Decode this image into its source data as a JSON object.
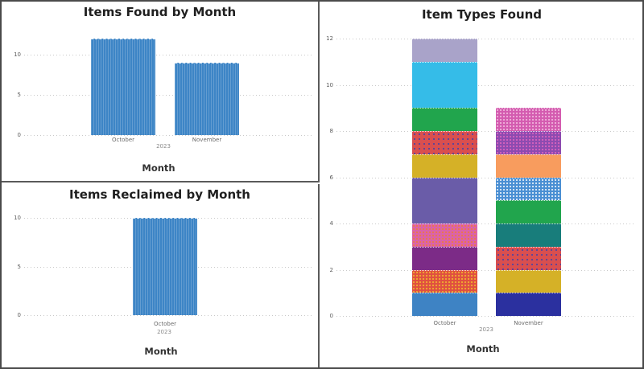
{
  "frame": {
    "background": "#ffffff",
    "border_color": "#4a4a4a",
    "divider_color": "#5a5a5a",
    "grid_color": "#c9c9c9"
  },
  "chart_data": [
    {
      "id": "found",
      "type": "bar",
      "title": "Items Found by Month",
      "xlabel": "Month",
      "x_group_label": "2023",
      "categories": [
        "October",
        "November"
      ],
      "values": [
        12,
        9
      ],
      "yticks": [
        0,
        5,
        10
      ],
      "ylim": [
        0,
        13.8
      ],
      "grid": true,
      "legend": "none",
      "bar_color": "#3d85c6"
    },
    {
      "id": "reclaimed",
      "type": "bar",
      "title": "Items Reclaimed by Month",
      "xlabel": "Month",
      "x_group_label": "2023",
      "categories": [
        "October"
      ],
      "values": [
        10
      ],
      "yticks": [
        0,
        5,
        10
      ],
      "ylim": [
        0,
        13.4
      ],
      "grid": true,
      "legend": "none",
      "bar_color": "#3d85c6"
    },
    {
      "id": "types",
      "type": "stacked-bar",
      "title": "Item Types Found",
      "xlabel": "Month",
      "x_group_label": "2023",
      "categories": [
        "October",
        "November"
      ],
      "totals": [
        12,
        9
      ],
      "yticks": [
        0,
        2,
        4,
        6,
        8,
        10,
        12
      ],
      "ylim": [
        0,
        12.6
      ],
      "grid": true,
      "legend": "none",
      "bars": [
        {
          "category": "October",
          "segments": [
            {
              "value": 1,
              "color": "#3e83c4",
              "pattern": "solid"
            },
            {
              "value": 1,
              "color": "#e05140",
              "pattern": "dots",
              "dot_color": "#f2c02c",
              "density": "dense"
            },
            {
              "value": 1,
              "color": "#7c2b87",
              "pattern": "solid"
            },
            {
              "value": 1,
              "color": "#da63a9",
              "pattern": "dots",
              "dot_color": "#ef7d33",
              "density": "dense"
            },
            {
              "value": 2,
              "color": "#6a5ca8",
              "pattern": "solid"
            },
            {
              "value": 1,
              "color": "#d5b127",
              "pattern": "solid"
            },
            {
              "value": 1,
              "color": "#d94f4f",
              "pattern": "dots",
              "dot_color": "#3b41ad",
              "density": "sparse"
            },
            {
              "value": 1,
              "color": "#21a54d",
              "pattern": "solid"
            },
            {
              "value": 2,
              "color": "#35bce8",
              "pattern": "solid"
            },
            {
              "value": 1,
              "color": "#a9a3c9",
              "pattern": "solid"
            }
          ]
        },
        {
          "category": "November",
          "segments": [
            {
              "value": 1,
              "color": "#2b309f",
              "pattern": "solid"
            },
            {
              "value": 1,
              "color": "#d5b127",
              "pattern": "solid"
            },
            {
              "value": 1,
              "color": "#d94f4f",
              "pattern": "dots",
              "dot_color": "#3b41ad",
              "density": "sparse"
            },
            {
              "value": 1,
              "color": "#187d7b",
              "pattern": "solid"
            },
            {
              "value": 1,
              "color": "#21a54d",
              "pattern": "solid"
            },
            {
              "value": 1,
              "color": "#4a8fd3",
              "pattern": "dots",
              "dot_color": "#ffffff",
              "density": "dense"
            },
            {
              "value": 1,
              "color": "#f89c5e",
              "pattern": "solid"
            },
            {
              "value": 1,
              "color": "#8d4bb0",
              "pattern": "dots",
              "dot_color": "#e866c0",
              "density": "dense"
            },
            {
              "value": 1,
              "color": "#d45cb0",
              "pattern": "dots",
              "dot_color": "#f5c3e3",
              "density": "dense"
            }
          ]
        }
      ]
    }
  ]
}
